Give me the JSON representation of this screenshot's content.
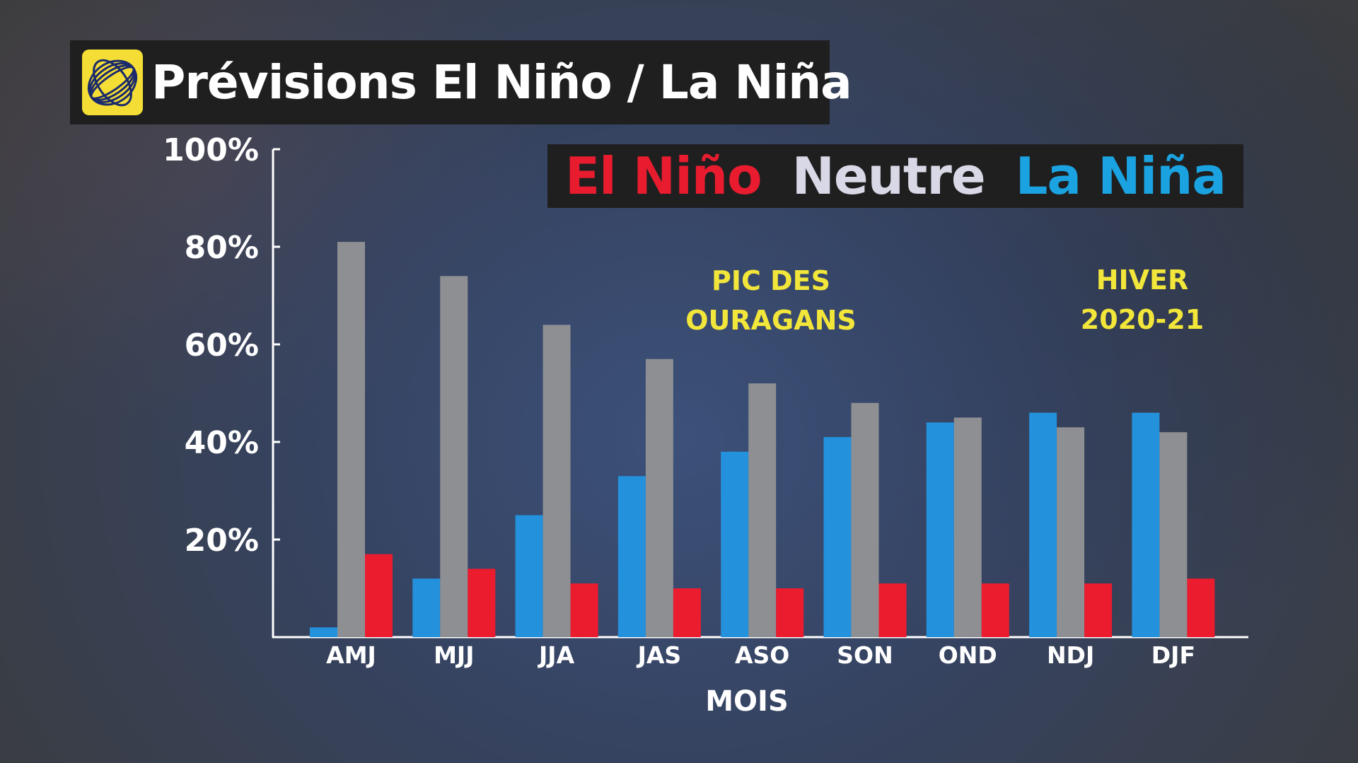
{
  "title": "Prévisions El Niño / La Niña",
  "logo_icon": "globe-swirl-icon",
  "legend": [
    {
      "label": "El Niño",
      "color": "#e81c2e"
    },
    {
      "label": "Neutre",
      "color": "#d8d8e6"
    },
    {
      "label": "La Niña",
      "color": "#1aa3e0"
    }
  ],
  "annotations": {
    "peak": "PIC DES\nOURAGANS",
    "winter": "HIVER\n2020-21"
  },
  "chart_data": {
    "type": "bar",
    "categories": [
      "AMJ",
      "MJJ",
      "JJA",
      "JAS",
      "ASO",
      "SON",
      "OND",
      "NDJ",
      "DJF"
    ],
    "series": [
      {
        "name": "La Niña",
        "color": "#2491dc",
        "values": [
          2,
          12,
          25,
          33,
          38,
          41,
          44,
          46,
          46
        ]
      },
      {
        "name": "Neutre",
        "color": "#8e8f93",
        "values": [
          81,
          74,
          64,
          57,
          52,
          48,
          45,
          43,
          42
        ]
      },
      {
        "name": "El Niño",
        "color": "#ec1c2f",
        "values": [
          17,
          14,
          11,
          10,
          10,
          11,
          11,
          11,
          12
        ]
      }
    ],
    "yticks": [
      "20%",
      "40%",
      "60%",
      "80%",
      "100%"
    ],
    "ylim": [
      0,
      100
    ],
    "xlabel": "MOIS",
    "ylabel": ""
  }
}
